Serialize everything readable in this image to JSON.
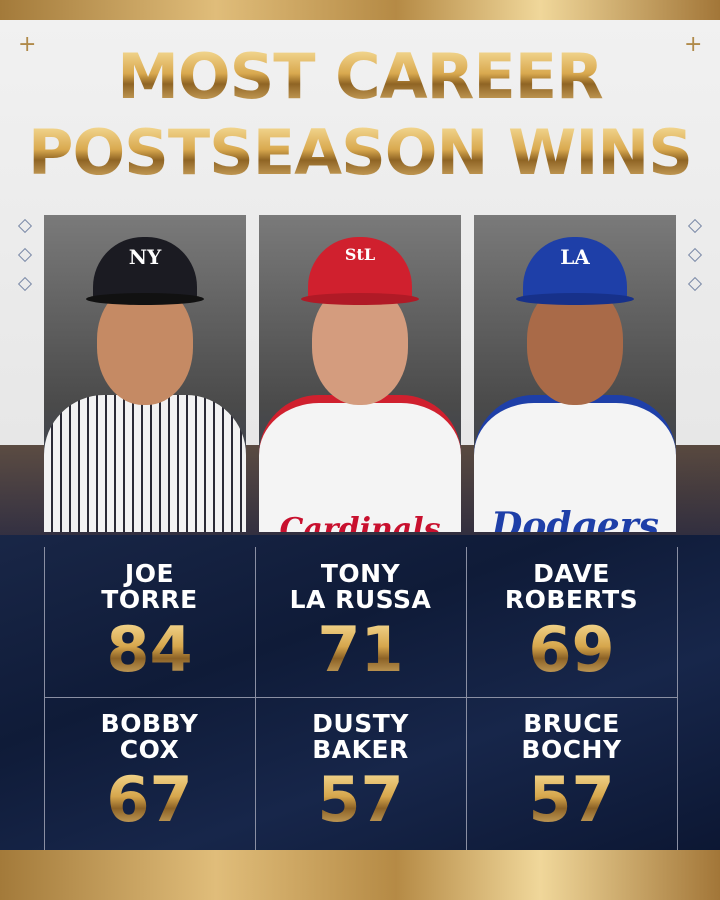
{
  "title": {
    "line1": "MOST CAREER",
    "line2": "POSTSEASON WINS"
  },
  "colors": {
    "gold": "#d9a94f",
    "navy": "#0f1c3a",
    "paper": "#ececec"
  },
  "photos": [
    {
      "team_logo": "NY",
      "jersey": "",
      "cap_color": "#1b1b22"
    },
    {
      "team_logo": "StL",
      "jersey": "Cardinals",
      "cap_color": "#d0202e"
    },
    {
      "team_logo": "LA",
      "jersey": "Dodgers",
      "cap_color": "#1e3fa8"
    }
  ],
  "leaders": [
    {
      "first": "JOE",
      "last": "TORRE",
      "wins": "84"
    },
    {
      "first": "TONY",
      "last": "LA RUSSA",
      "wins": "71"
    },
    {
      "first": "DAVE",
      "last": "ROBERTS",
      "wins": "69"
    },
    {
      "first": "BOBBY",
      "last": "COX",
      "wins": "67"
    },
    {
      "first": "DUSTY",
      "last": "BAKER",
      "wins": "57"
    },
    {
      "first": "BRUCE",
      "last": "BOCHY",
      "wins": "57"
    }
  ]
}
